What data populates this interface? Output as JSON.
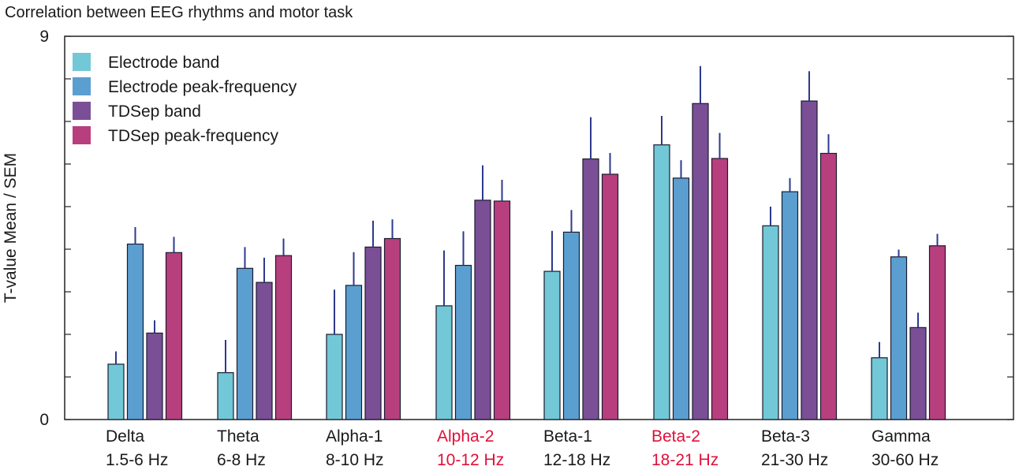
{
  "chart_data": {
    "type": "bar",
    "title": "Correlation between EEG rhythms and motor task",
    "ylabel": "T-value Mean / SEM",
    "xlabel": "",
    "ylim": [
      0,
      9
    ],
    "ytick_labels": [
      "0",
      "9"
    ],
    "legend_position": "top-left",
    "highlight_color": "#e0103a",
    "categories": [
      {
        "name": "Delta",
        "range": "1.5-6 Hz",
        "highlight": false
      },
      {
        "name": "Theta",
        "range": "6-8 Hz",
        "highlight": false
      },
      {
        "name": "Alpha-1",
        "range": "8-10 Hz",
        "highlight": false
      },
      {
        "name": "Alpha-2",
        "range": "10-12 Hz",
        "highlight": true
      },
      {
        "name": "Beta-1",
        "range": "12-18 Hz",
        "highlight": false
      },
      {
        "name": "Beta-2",
        "range": "18-21 Hz",
        "highlight": true
      },
      {
        "name": "Beta-3",
        "range": "21-30 Hz",
        "highlight": false
      },
      {
        "name": "Gamma",
        "range": "30-60 Hz",
        "highlight": false
      }
    ],
    "series": [
      {
        "name": "Electrode band",
        "color": "#72c8d6",
        "values": [
          1.3,
          1.1,
          2.0,
          2.67,
          3.48,
          6.45,
          4.55,
          1.45
        ],
        "errors": [
          0.3,
          0.77,
          1.05,
          1.3,
          0.95,
          0.68,
          0.45,
          0.37
        ]
      },
      {
        "name": "Electrode peak-frequency",
        "color": "#5b9fd1",
        "values": [
          4.12,
          3.55,
          3.15,
          3.62,
          4.4,
          5.67,
          5.35,
          3.82
        ],
        "errors": [
          0.4,
          0.5,
          0.78,
          0.8,
          0.52,
          0.42,
          0.32,
          0.17
        ]
      },
      {
        "name": "TDSep band",
        "color": "#7a4f96",
        "values": [
          2.03,
          3.22,
          4.05,
          5.15,
          6.12,
          7.42,
          7.48,
          2.16
        ],
        "errors": [
          0.3,
          0.58,
          0.62,
          0.82,
          0.98,
          0.88,
          0.7,
          0.35
        ]
      },
      {
        "name": "TDSep peak-frequency",
        "color": "#b83f7e",
        "values": [
          3.92,
          3.85,
          4.25,
          5.13,
          5.76,
          6.13,
          6.25,
          4.08
        ],
        "errors": [
          0.37,
          0.4,
          0.45,
          0.5,
          0.5,
          0.6,
          0.45,
          0.28
        ]
      }
    ]
  }
}
